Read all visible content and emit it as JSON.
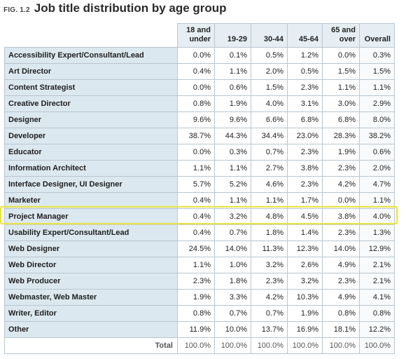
{
  "figure": {
    "tag": "FIG. 1.2",
    "title": "Job title distribution by age group"
  },
  "chart_data": {
    "type": "table",
    "title": "Job title distribution by age group",
    "columns": [
      "18 and under",
      "19-29",
      "30-44",
      "45-64",
      "65 and over",
      "Overall"
    ],
    "rows": [
      {
        "label": "Accessibility Expert/Consultant/Lead",
        "values": [
          "0.0%",
          "0.1%",
          "0.5%",
          "1.2%",
          "0.0%",
          "0.3%"
        ]
      },
      {
        "label": "Art Director",
        "values": [
          "0.4%",
          "1.1%",
          "2.0%",
          "0.5%",
          "1.5%",
          "1.5%"
        ]
      },
      {
        "label": "Content Strategist",
        "values": [
          "0.0%",
          "0.6%",
          "1.5%",
          "2.3%",
          "1.1%",
          "1.1%"
        ]
      },
      {
        "label": "Creative Director",
        "values": [
          "0.8%",
          "1.9%",
          "4.0%",
          "3.1%",
          "3.0%",
          "2.9%"
        ]
      },
      {
        "label": "Designer",
        "values": [
          "9.6%",
          "9.6%",
          "6.6%",
          "6.8%",
          "6.8%",
          "8.0%"
        ]
      },
      {
        "label": "Developer",
        "values": [
          "38.7%",
          "44.3%",
          "34.4%",
          "23.0%",
          "28.3%",
          "38.2%"
        ]
      },
      {
        "label": "Educator",
        "values": [
          "0.0%",
          "0.3%",
          "0.7%",
          "2.3%",
          "1.9%",
          "0.6%"
        ]
      },
      {
        "label": "Information Architect",
        "values": [
          "1.1%",
          "1.1%",
          "2.7%",
          "3.8%",
          "2.3%",
          "2.0%"
        ]
      },
      {
        "label": "Interface Designer, UI Designer",
        "values": [
          "5.7%",
          "5.2%",
          "4.6%",
          "2.3%",
          "4.2%",
          "4.7%"
        ]
      },
      {
        "label": "Marketer",
        "values": [
          "0.4%",
          "1.1%",
          "1.1%",
          "1.7%",
          "0.0%",
          "1.1%"
        ]
      },
      {
        "label": "Project Manager",
        "values": [
          "0.4%",
          "3.2%",
          "4.8%",
          "4.5%",
          "3.8%",
          "4.0%"
        ]
      },
      {
        "label": "Usability Expert/Consultant/Lead",
        "values": [
          "0.4%",
          "0.7%",
          "1.8%",
          "1.4%",
          "2.3%",
          "1.3%"
        ]
      },
      {
        "label": "Web Designer",
        "values": [
          "24.5%",
          "14.0%",
          "11.3%",
          "12.3%",
          "14.0%",
          "12.9%"
        ]
      },
      {
        "label": "Web Director",
        "values": [
          "1.1%",
          "1.0%",
          "3.2%",
          "2.6%",
          "4.9%",
          "2.1%"
        ]
      },
      {
        "label": "Web Producer",
        "values": [
          "2.3%",
          "1.8%",
          "2.3%",
          "3.2%",
          "2.3%",
          "2.1%"
        ]
      },
      {
        "label": "Webmaster, Web Master",
        "values": [
          "1.9%",
          "3.3%",
          "4.2%",
          "10.3%",
          "4.9%",
          "4.1%"
        ]
      },
      {
        "label": "Writer, Editor",
        "values": [
          "0.8%",
          "0.7%",
          "0.7%",
          "1.9%",
          "0.8%",
          "0.8%"
        ]
      },
      {
        "label": "Other",
        "values": [
          "11.9%",
          "10.0%",
          "13.7%",
          "16.9%",
          "18.1%",
          "12.2%"
        ]
      }
    ],
    "total": {
      "label": "Total",
      "values": [
        "100.0%",
        "100.0%",
        "100.0%",
        "100.0%",
        "100.0%",
        "100.0%"
      ]
    },
    "highlighted_row": "Project Manager",
    "colors": {
      "header_bg": "#e6eef3",
      "label_bg": "#dce8ef",
      "border": "#b9c6cf",
      "highlight": "#e9e34a"
    }
  }
}
